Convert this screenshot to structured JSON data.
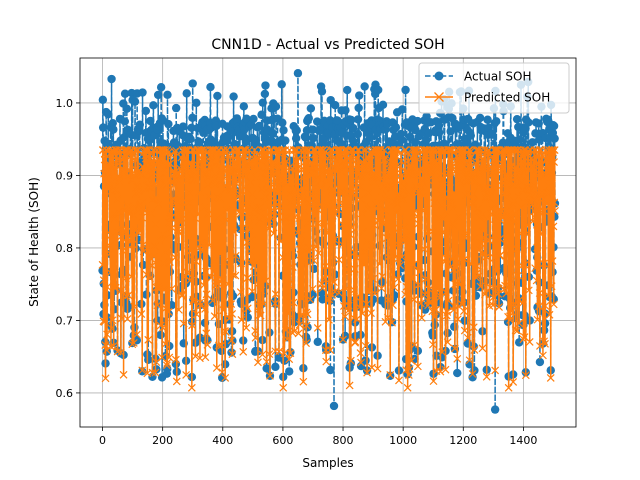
{
  "chart_data": {
    "type": "line",
    "title": "CNN1D - Actual vs Predicted SOH",
    "xlabel": "Samples",
    "ylabel": "State of Health (SOH)",
    "xlim": [
      -75,
      1575
    ],
    "ylim": [
      0.553,
      1.062
    ],
    "xticks": [
      0,
      200,
      400,
      600,
      800,
      1000,
      1200,
      1400
    ],
    "yticks": [
      0.6,
      0.7,
      0.8,
      0.9,
      1.0
    ],
    "xtick_labels": [
      "0",
      "200",
      "400",
      "600",
      "800",
      "1000",
      "1200",
      "1400"
    ],
    "ytick_labels": [
      "0.6",
      "0.7",
      "0.8",
      "0.9",
      "1.0"
    ],
    "grid": true,
    "legend_position": "top-right",
    "n_samples": 1506,
    "series": [
      {
        "name": "Actual SOH",
        "color": "#1f77b4",
        "marker": "circle",
        "linestyle": "dashed",
        "range": [
          0.577,
          1.041
        ]
      },
      {
        "name": "Predicted SOH",
        "color": "#ff7f0e",
        "marker": "x",
        "linestyle": "solid",
        "range": [
          0.607,
          0.935
        ]
      }
    ]
  }
}
